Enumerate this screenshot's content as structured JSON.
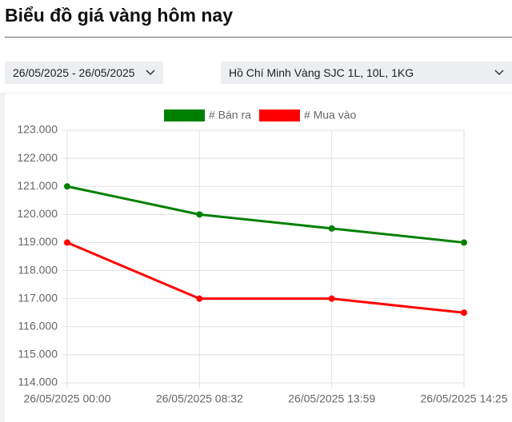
{
  "header": {
    "title": "Biểu đồ giá vàng hôm nay"
  },
  "filters": {
    "date_range": "26/05/2025 - 26/05/2025",
    "product": "Hồ Chí Minh Vàng SJC 1L, 10L, 1KG"
  },
  "chart_data": {
    "type": "line",
    "categories": [
      "26/05/2025 00:00",
      "26/05/2025 08:32",
      "26/05/2025 13:59",
      "26/05/2025 14:25"
    ],
    "series": [
      {
        "name": "# Bán ra",
        "color": "#008000",
        "values": [
          121000,
          120000,
          119500,
          119000
        ]
      },
      {
        "name": "# Mua vào",
        "color": "#ff0000",
        "values": [
          119000,
          117000,
          117000,
          116500
        ]
      }
    ],
    "ylim": [
      114000,
      123000
    ],
    "yticks": [
      {
        "value": 114000,
        "label": "114.000"
      },
      {
        "value": 115000,
        "label": "115.000"
      },
      {
        "value": 116000,
        "label": "116.000"
      },
      {
        "value": 117000,
        "label": "117.000"
      },
      {
        "value": 118000,
        "label": "118.000"
      },
      {
        "value": 119000,
        "label": "119.000"
      },
      {
        "value": 120000,
        "label": "120.000"
      },
      {
        "value": 121000,
        "label": "121.000"
      },
      {
        "value": 122000,
        "label": "122.000"
      },
      {
        "value": 123000,
        "label": "123.000"
      }
    ],
    "grid": true,
    "legend": "top"
  }
}
